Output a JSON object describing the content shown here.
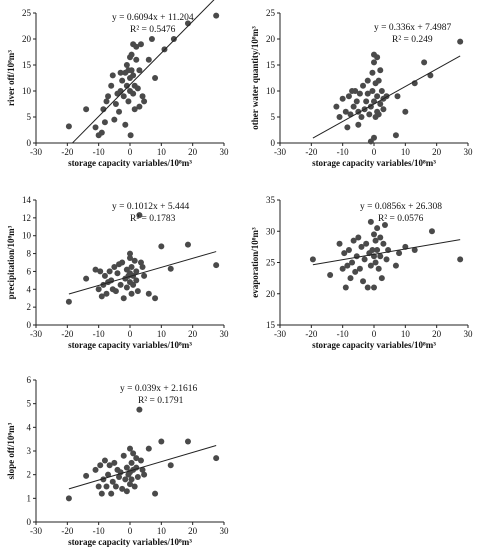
{
  "chart_data": [
    {
      "type": "scatter",
      "xlabel": "storage capacity variables/10⁸m³",
      "ylabel": "river off/10⁸m³",
      "xlim": [
        -30,
        30
      ],
      "ylim": [
        0,
        25
      ],
      "xticks": [
        -30,
        -20,
        -10,
        0,
        10,
        20,
        30
      ],
      "yticks": [
        0,
        5,
        10,
        15,
        20,
        25
      ],
      "equation": "y = 0.6094x + 11.204",
      "r2": "R² = 0.5476",
      "fit": {
        "slope": 0.6094,
        "intercept": 11.204,
        "x_range": [
          -18.4,
          27.5
        ]
      },
      "points": [
        [
          -19.5,
          3.2
        ],
        [
          -14,
          6.5
        ],
        [
          -11,
          3
        ],
        [
          -10,
          1.5
        ],
        [
          -9,
          2
        ],
        [
          -8.5,
          6.5
        ],
        [
          -8,
          4
        ],
        [
          -7.5,
          8
        ],
        [
          -7,
          9
        ],
        [
          -6,
          11
        ],
        [
          -5.5,
          13
        ],
        [
          -5,
          4.5
        ],
        [
          -4.5,
          7.5
        ],
        [
          -4,
          9.5
        ],
        [
          -3.5,
          6
        ],
        [
          -3,
          10
        ],
        [
          -2.5,
          12
        ],
        [
          -2,
          9
        ],
        [
          -1.5,
          13.5
        ],
        [
          -1,
          15
        ],
        [
          -1,
          11
        ],
        [
          -0.5,
          14
        ],
        [
          -0.5,
          8
        ],
        [
          0,
          16.5
        ],
        [
          0,
          12.5
        ],
        [
          0,
          10
        ],
        [
          0.5,
          17
        ],
        [
          0.5,
          14
        ],
        [
          1,
          13
        ],
        [
          1,
          9.5
        ],
        [
          1.5,
          6.5
        ],
        [
          1.5,
          11
        ],
        [
          2,
          18.5
        ],
        [
          2,
          16
        ],
        [
          2.5,
          10.5
        ],
        [
          3,
          7
        ],
        [
          3,
          14
        ],
        [
          3.5,
          19
        ],
        [
          4,
          9
        ],
        [
          4.5,
          8
        ],
        [
          6,
          16
        ],
        [
          7,
          20
        ],
        [
          8,
          12.5
        ],
        [
          11,
          18
        ],
        [
          14,
          20
        ],
        [
          18.5,
          23
        ],
        [
          27.5,
          24.5
        ],
        [
          0.2,
          1.5
        ],
        [
          -1.5,
          3.5
        ],
        [
          1,
          19
        ],
        [
          -3,
          13.5
        ]
      ]
    },
    {
      "type": "scatter",
      "xlabel": "storage capacity variables/10⁸m³",
      "ylabel": "other water quantity/10⁸m³",
      "xlim": [
        -30,
        30
      ],
      "ylim": [
        0,
        25
      ],
      "xticks": [
        -30,
        -20,
        -10,
        0,
        10,
        20,
        30
      ],
      "yticks": [
        0,
        5,
        10,
        15,
        20,
        25
      ],
      "equation": "y = 0.336x + 7.4987",
      "r2": "R² = 0.249",
      "fit": {
        "slope": 0.336,
        "intercept": 7.4987,
        "x_range": [
          -19.5,
          27.5
        ]
      },
      "points": [
        [
          -12,
          7
        ],
        [
          -11,
          5
        ],
        [
          -10,
          8.5
        ],
        [
          -9,
          6
        ],
        [
          -8.5,
          3
        ],
        [
          -8,
          9
        ],
        [
          -7.5,
          5.5
        ],
        [
          -7,
          10
        ],
        [
          -6.5,
          7
        ],
        [
          -6,
          10
        ],
        [
          -5.5,
          8
        ],
        [
          -5,
          3.5
        ],
        [
          -5,
          6
        ],
        [
          -4.5,
          9.5
        ],
        [
          -4,
          5
        ],
        [
          -3.5,
          11
        ],
        [
          -3,
          6.5
        ],
        [
          -2.5,
          8
        ],
        [
          -2,
          9.5
        ],
        [
          -2,
          12
        ],
        [
          -1.5,
          5.5
        ],
        [
          -1,
          0.3
        ],
        [
          -1,
          7
        ],
        [
          -0.5,
          10
        ],
        [
          -0.5,
          13.5
        ],
        [
          0,
          1
        ],
        [
          0,
          8
        ],
        [
          0,
          15.5
        ],
        [
          0,
          17
        ],
        [
          0.5,
          5
        ],
        [
          0.5,
          11.5
        ],
        [
          1,
          6
        ],
        [
          1,
          9
        ],
        [
          1,
          16.5
        ],
        [
          1.5,
          12
        ],
        [
          1.5,
          5.5
        ],
        [
          2,
          7.5
        ],
        [
          2,
          14
        ],
        [
          2.5,
          10
        ],
        [
          3,
          6.5
        ],
        [
          3,
          8.5
        ],
        [
          4,
          9
        ],
        [
          7,
          1.5
        ],
        [
          7.5,
          9
        ],
        [
          10,
          6
        ],
        [
          13,
          11.5
        ],
        [
          16,
          15.5
        ],
        [
          18,
          13
        ],
        [
          27.5,
          19.5
        ]
      ]
    },
    {
      "type": "scatter",
      "xlabel": "storage capacity variables/10⁸m³",
      "ylabel": "precipitation/10⁸m³",
      "xlim": [
        -30,
        30
      ],
      "ylim": [
        0,
        14
      ],
      "xticks": [
        -30,
        -20,
        -10,
        0,
        10,
        20,
        30
      ],
      "yticks": [
        0,
        2,
        4,
        6,
        8,
        10,
        12,
        14
      ],
      "equation": "y = 0.1012x + 5.444",
      "r2": "R² = 0.1783",
      "fit": {
        "slope": 0.1012,
        "intercept": 5.444,
        "x_range": [
          -19.5,
          27.5
        ]
      },
      "points": [
        [
          -19.5,
          2.6
        ],
        [
          -14,
          5.2
        ],
        [
          -11,
          6.2
        ],
        [
          -10,
          4
        ],
        [
          -9.5,
          6
        ],
        [
          -9,
          3.2
        ],
        [
          -8.5,
          4.5
        ],
        [
          -8,
          5.5
        ],
        [
          -7.5,
          3.5
        ],
        [
          -7,
          4.8
        ],
        [
          -6.5,
          6
        ],
        [
          -6,
          5
        ],
        [
          -5.5,
          4
        ],
        [
          -5,
          6.5
        ],
        [
          -4.5,
          3.8
        ],
        [
          -4,
          5.8
        ],
        [
          -3.5,
          6.8
        ],
        [
          -3,
          4.5
        ],
        [
          -2.5,
          7
        ],
        [
          -2,
          3
        ],
        [
          -1.5,
          5.2
        ],
        [
          -1,
          6.2
        ],
        [
          -1,
          4.2
        ],
        [
          -0.5,
          5.5
        ],
        [
          0,
          4.8
        ],
        [
          0,
          5.8
        ],
        [
          0,
          7.5
        ],
        [
          0,
          8
        ],
        [
          0.5,
          3.5
        ],
        [
          0.5,
          6.5
        ],
        [
          1,
          4.5
        ],
        [
          1,
          5.5
        ],
        [
          1.5,
          7.2
        ],
        [
          2,
          5
        ],
        [
          2,
          6
        ],
        [
          2.5,
          3.8
        ],
        [
          3,
          12.3
        ],
        [
          3.5,
          7
        ],
        [
          4,
          6.5
        ],
        [
          4.5,
          5.5
        ],
        [
          6,
          3.5
        ],
        [
          8,
          3
        ],
        [
          10,
          8.8
        ],
        [
          13,
          6.3
        ],
        [
          18.5,
          9
        ],
        [
          27.5,
          6.7
        ]
      ]
    },
    {
      "type": "scatter",
      "xlabel": "storage capacity variables/10⁸m³",
      "ylabel": "evaporation/10⁸m³",
      "xlim": [
        -30,
        30
      ],
      "ylim": [
        15,
        35
      ],
      "xticks": [
        -30,
        -20,
        -10,
        0,
        10,
        20,
        30
      ],
      "yticks": [
        15,
        20,
        25,
        30,
        35
      ],
      "equation": "y = 0.0856x + 26.308",
      "r2": "R² = 0.0576",
      "fit": {
        "slope": 0.0856,
        "intercept": 26.308,
        "x_range": [
          -19.5,
          27.5
        ]
      },
      "points": [
        [
          -19.5,
          25.5
        ],
        [
          -14,
          23
        ],
        [
          -11,
          28
        ],
        [
          -10,
          24
        ],
        [
          -9.5,
          26.5
        ],
        [
          -9,
          21
        ],
        [
          -8.5,
          24.5
        ],
        [
          -8,
          27
        ],
        [
          -7.5,
          22.5
        ],
        [
          -7,
          25
        ],
        [
          -6.5,
          28.5
        ],
        [
          -6,
          23.5
        ],
        [
          -5.5,
          26
        ],
        [
          -5,
          29
        ],
        [
          -4.5,
          24
        ],
        [
          -4,
          27.5
        ],
        [
          -3.5,
          22
        ],
        [
          -3,
          25.5
        ],
        [
          -2.5,
          28
        ],
        [
          -2,
          21
        ],
        [
          -1.5,
          26.5
        ],
        [
          -1,
          31.5
        ],
        [
          -1,
          24.5
        ],
        [
          -0.5,
          27
        ],
        [
          0,
          29.5
        ],
        [
          0,
          26
        ],
        [
          0,
          21
        ],
        [
          0.5,
          28.5
        ],
        [
          0.5,
          25
        ],
        [
          1,
          27
        ],
        [
          1,
          30.5
        ],
        [
          1.5,
          24
        ],
        [
          2,
          29
        ],
        [
          2,
          26
        ],
        [
          2.5,
          22.5
        ],
        [
          3,
          28
        ],
        [
          3.5,
          31
        ],
        [
          4,
          25.5
        ],
        [
          4.5,
          27
        ],
        [
          7,
          24.5
        ],
        [
          8,
          26.5
        ],
        [
          10,
          27.5
        ],
        [
          13,
          27
        ],
        [
          18.5,
          30
        ],
        [
          27.5,
          25.5
        ]
      ]
    },
    {
      "type": "scatter",
      "xlabel": "storage capacity variables/10⁸m³",
      "ylabel": "slope off/10⁸m³",
      "xlim": [
        -30,
        30
      ],
      "ylim": [
        0,
        6
      ],
      "xticks": [
        -30,
        -20,
        -10,
        0,
        10,
        20,
        30
      ],
      "yticks": [
        0,
        1,
        2,
        3,
        4,
        5,
        6
      ],
      "equation": "y = 0.039x + 2.1616",
      "r2": "R² = 0.1791",
      "fit": {
        "slope": 0.039,
        "intercept": 2.1616,
        "x_range": [
          -19.5,
          27.5
        ]
      },
      "points": [
        [
          -19.5,
          1.0
        ],
        [
          -14,
          1.95
        ],
        [
          -11,
          2.2
        ],
        [
          -10,
          1.5
        ],
        [
          -9.5,
          2.4
        ],
        [
          -9,
          1.2
        ],
        [
          -8.5,
          1.8
        ],
        [
          -8,
          2.6
        ],
        [
          -7.5,
          1.5
        ],
        [
          -7,
          2.0
        ],
        [
          -6.5,
          2.4
        ],
        [
          -6,
          1.2
        ],
        [
          -5.5,
          1.7
        ],
        [
          -5,
          2.5
        ],
        [
          -4.5,
          1.5
        ],
        [
          -4,
          2.2
        ],
        [
          -3.5,
          1.9
        ],
        [
          -3,
          2.1
        ],
        [
          -2.5,
          1.4
        ],
        [
          -2,
          2.8
        ],
        [
          -1.5,
          1.8
        ],
        [
          -1,
          2.3
        ],
        [
          -1,
          1.3
        ],
        [
          -0.5,
          2.0
        ],
        [
          0,
          1.6
        ],
        [
          0,
          2.1
        ],
        [
          0,
          3.1
        ],
        [
          0.5,
          2.5
        ],
        [
          0.5,
          1.8
        ],
        [
          1,
          2.2
        ],
        [
          1,
          2.9
        ],
        [
          1.5,
          1.5
        ],
        [
          2,
          2.7
        ],
        [
          2,
          2.3
        ],
        [
          2.5,
          1.9
        ],
        [
          3,
          4.75
        ],
        [
          3.5,
          2.6
        ],
        [
          4,
          2.2
        ],
        [
          4.5,
          2.0
        ],
        [
          6,
          3.1
        ],
        [
          8,
          1.2
        ],
        [
          10,
          3.4
        ],
        [
          13,
          2.4
        ],
        [
          18.5,
          3.4
        ],
        [
          27.5,
          2.7
        ]
      ]
    }
  ]
}
